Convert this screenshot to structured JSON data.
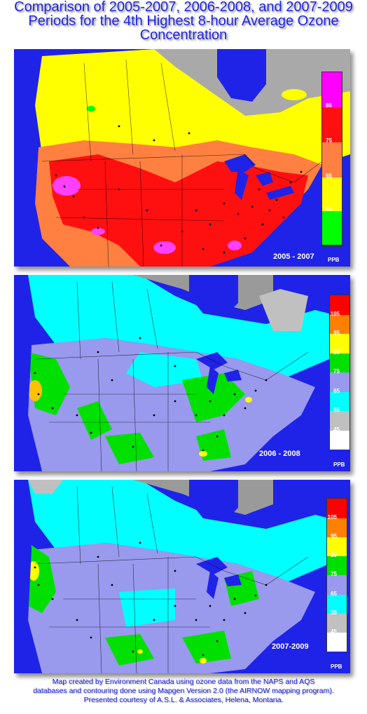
{
  "title": {
    "line1": "Comparison of 2005-2007, 2006-2008, and 2007-2009",
    "line2": "Periods for the 4th Highest 8-hour Average Ozone",
    "line3": "Concentration"
  },
  "maps": [
    {
      "period": "2005 - 2007",
      "unit": "PPB",
      "legend": {
        "colors": [
          "#ff00ff",
          "#ff1010",
          "#ff8040",
          "#ffff00",
          "#00ff00"
        ],
        "ticks": [
          "85",
          "75",
          "65",
          "50"
        ]
      }
    },
    {
      "period": "2006 - 2008",
      "unit": "PPB",
      "legend": {
        "colors": [
          "#ff0000",
          "#ff8000",
          "#ffff00",
          "#00e000",
          "#9999ee",
          "#00ffff",
          "#c0c0c0",
          "#ffffff"
        ],
        "ticks": [
          "105",
          "95",
          "85",
          "75",
          "65",
          "55",
          "45"
        ]
      }
    },
    {
      "period": "2007-2009",
      "unit": "PPB",
      "legend": {
        "colors": [
          "#ff0000",
          "#ff8000",
          "#ffff00",
          "#00e000",
          "#9999ee",
          "#00ffff",
          "#c0c0c0",
          "#ffffff"
        ],
        "ticks": [
          "105",
          "95",
          "85",
          "75",
          "65",
          "55",
          "45"
        ]
      }
    }
  ],
  "footer": {
    "line1": "Map created by Environment Canada using ozone data from the NAPS and AQS",
    "line2": "databases and contouring done using Mapgen Version 2.0  (the AIRNOW mapping program).",
    "line3": "Presented courtesy of A.S.L. & Associates, Helena, Montana."
  }
}
